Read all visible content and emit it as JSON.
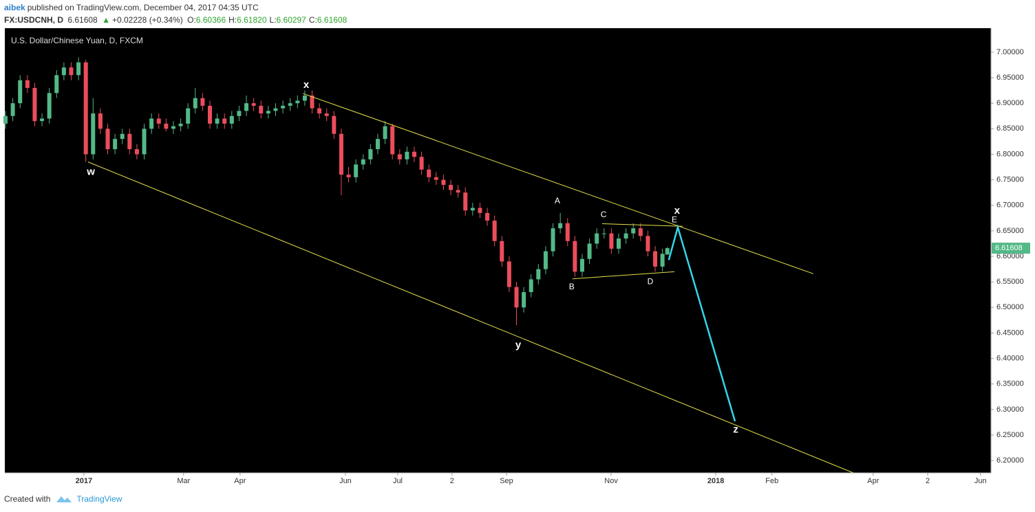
{
  "header": {
    "author": "aibek",
    "published": "published on TradingView.com, December 04, 2017 04:35 UTC",
    "symbol": "FX:USDCNH, D",
    "last": "6.61608",
    "arrow": "▲",
    "change": "+0.02228 (+0.34%)",
    "ohlc": [
      {
        "label": "O:",
        "value": "6.60366"
      },
      {
        "label": "H:",
        "value": "6.61820"
      },
      {
        "label": "L:",
        "value": "6.60297"
      },
      {
        "label": "C:",
        "value": "6.61608"
      }
    ]
  },
  "chart_data": {
    "type": "candlestick",
    "title": "U.S. Dollar/Chinese Yuan, D, FXCM",
    "up_color": "#53b987",
    "down_color": "#eb4d5c",
    "background": "#000000",
    "xlim": [
      0,
      405
    ],
    "ylim": [
      6.176,
      7.047
    ],
    "xticks": [
      {
        "value": 32.2,
        "label": "2017"
      },
      {
        "value": 73.2,
        "label": "Mar"
      },
      {
        "value": 96.4,
        "label": "Apr"
      },
      {
        "value": 139.7,
        "label": "Jun"
      },
      {
        "value": 161.2,
        "label": "Jul"
      },
      {
        "value": 183.5,
        "label": "2"
      },
      {
        "value": 205.9,
        "label": "Sep"
      },
      {
        "value": 248.9,
        "label": "Nov"
      },
      {
        "value": 291.9,
        "label": "2018"
      },
      {
        "value": 315.0,
        "label": "Feb"
      },
      {
        "value": 356.6,
        "label": "Apr"
      },
      {
        "value": 379.0,
        "label": "2"
      },
      {
        "value": 400.7,
        "label": "Jun"
      }
    ],
    "yticks": [
      {
        "value": 6.2,
        "label": "6.20000"
      },
      {
        "value": 6.25,
        "label": "6.25000"
      },
      {
        "value": 6.3,
        "label": "6.30000"
      },
      {
        "value": 6.35,
        "label": "6.35000"
      },
      {
        "value": 6.4,
        "label": "6.40000"
      },
      {
        "value": 6.45,
        "label": "6.45000"
      },
      {
        "value": 6.5,
        "label": "6.50000"
      },
      {
        "value": 6.55,
        "label": "6.55000"
      },
      {
        "value": 6.6,
        "label": "6.60000"
      },
      {
        "value": 6.65,
        "label": "6.65000"
      },
      {
        "value": 6.7,
        "label": "6.70000"
      },
      {
        "value": 6.75,
        "label": "6.75000"
      },
      {
        "value": 6.8,
        "label": "6.80000"
      },
      {
        "value": 6.85,
        "label": "6.85000"
      },
      {
        "value": 6.9,
        "label": "6.90000"
      },
      {
        "value": 6.95,
        "label": "6.95000"
      },
      {
        "value": 7.0,
        "label": "7.00000"
      }
    ],
    "last_price": 6.61608,
    "last_color": "#53b987",
    "x": [
      0,
      3,
      6,
      9,
      12,
      15,
      18,
      21,
      24,
      27,
      30,
      33,
      36,
      39,
      42,
      45,
      48,
      51,
      54,
      57,
      60,
      63,
      66,
      69,
      72,
      75,
      78,
      81,
      84,
      87,
      90,
      93,
      96,
      99,
      102,
      105,
      108,
      111,
      114,
      117,
      120,
      123,
      126,
      129,
      132,
      135,
      138,
      141,
      144,
      147,
      150,
      153,
      156,
      159,
      162,
      165,
      168,
      171,
      174,
      177,
      180,
      183,
      186,
      189,
      192,
      195,
      198,
      201,
      204,
      207,
      210,
      213,
      216,
      219,
      222,
      225,
      228,
      231,
      234,
      237,
      240,
      243,
      246,
      249,
      252,
      255,
      258,
      261,
      264,
      267,
      270,
      272
    ],
    "open": [
      6.86,
      6.875,
      6.9,
      6.945,
      6.93,
      6.865,
      6.87,
      6.92,
      6.955,
      6.97,
      6.955,
      6.98,
      6.8,
      6.88,
      6.85,
      6.81,
      6.83,
      6.84,
      6.81,
      6.8,
      6.85,
      6.87,
      6.86,
      6.85,
      6.855,
      6.86,
      6.89,
      6.91,
      6.895,
      6.86,
      6.87,
      6.86,
      6.875,
      6.885,
      6.9,
      6.895,
      6.88,
      6.885,
      6.89,
      6.895,
      6.9,
      6.905,
      6.915,
      6.89,
      6.88,
      6.875,
      6.84,
      6.76,
      6.755,
      6.78,
      6.79,
      6.81,
      6.83,
      6.855,
      6.8,
      6.79,
      6.805,
      6.795,
      6.77,
      6.755,
      6.75,
      6.74,
      6.73,
      6.725,
      6.69,
      6.695,
      6.685,
      6.67,
      6.63,
      6.59,
      6.54,
      6.5,
      6.53,
      6.555,
      6.575,
      6.61,
      6.655,
      6.665,
      6.63,
      6.57,
      6.595,
      6.625,
      6.645,
      6.645,
      6.615,
      6.635,
      6.645,
      6.655,
      6.64,
      6.61,
      6.58,
      6.60366
    ],
    "high": [
      6.885,
      6.91,
      6.955,
      6.955,
      6.94,
      6.88,
      6.93,
      6.965,
      6.98,
      6.98,
      6.99,
      6.985,
      6.91,
      6.89,
      6.86,
      6.84,
      6.85,
      6.85,
      6.82,
      6.86,
      6.88,
      6.88,
      6.87,
      6.865,
      6.87,
      6.9,
      6.93,
      6.92,
      6.905,
      6.88,
      6.88,
      6.885,
      6.895,
      6.915,
      6.91,
      6.905,
      6.895,
      6.9,
      6.905,
      6.91,
      6.915,
      6.925,
      6.925,
      6.9,
      6.89,
      6.885,
      6.85,
      6.775,
      6.79,
      6.8,
      6.82,
      6.84,
      6.865,
      6.86,
      6.81,
      6.815,
      6.815,
      6.805,
      6.78,
      6.765,
      6.76,
      6.75,
      6.74,
      6.735,
      6.705,
      6.705,
      6.695,
      6.68,
      6.64,
      6.6,
      6.55,
      6.54,
      6.565,
      6.585,
      6.62,
      6.665,
      6.685,
      6.675,
      6.64,
      6.605,
      6.635,
      6.655,
      6.655,
      6.655,
      6.645,
      6.655,
      6.665,
      6.665,
      6.65,
      6.62,
      6.615,
      6.6182
    ],
    "low": [
      6.85,
      6.865,
      6.89,
      6.92,
      6.855,
      6.855,
      6.86,
      6.91,
      6.945,
      6.945,
      6.945,
      6.785,
      6.79,
      6.84,
      6.8,
      6.8,
      6.82,
      6.8,
      6.79,
      6.79,
      6.84,
      6.85,
      6.845,
      6.84,
      6.845,
      6.85,
      6.88,
      6.885,
      6.85,
      6.85,
      6.85,
      6.85,
      6.865,
      6.875,
      6.885,
      6.87,
      6.87,
      6.875,
      6.88,
      6.885,
      6.89,
      6.895,
      6.88,
      6.87,
      6.865,
      6.83,
      6.72,
      6.745,
      6.745,
      6.77,
      6.78,
      6.8,
      6.82,
      6.79,
      6.78,
      6.78,
      6.785,
      6.76,
      6.745,
      6.74,
      6.73,
      6.72,
      6.715,
      6.68,
      6.68,
      6.675,
      6.66,
      6.62,
      6.58,
      6.53,
      6.465,
      6.49,
      6.52,
      6.545,
      6.565,
      6.6,
      6.645,
      6.62,
      6.56,
      6.56,
      6.585,
      6.615,
      6.635,
      6.605,
      6.605,
      6.625,
      6.635,
      6.63,
      6.6,
      6.57,
      6.57,
      6.60297
    ],
    "close": [
      6.875,
      6.9,
      6.945,
      6.93,
      6.865,
      6.87,
      6.92,
      6.955,
      6.97,
      6.955,
      6.98,
      6.8,
      6.88,
      6.85,
      6.81,
      6.83,
      6.84,
      6.81,
      6.8,
      6.85,
      6.87,
      6.86,
      6.85,
      6.855,
      6.86,
      6.89,
      6.91,
      6.895,
      6.86,
      6.87,
      6.86,
      6.875,
      6.885,
      6.9,
      6.895,
      6.88,
      6.885,
      6.89,
      6.895,
      6.9,
      6.905,
      6.915,
      6.89,
      6.88,
      6.875,
      6.84,
      6.76,
      6.755,
      6.78,
      6.79,
      6.81,
      6.83,
      6.855,
      6.8,
      6.79,
      6.805,
      6.795,
      6.77,
      6.755,
      6.75,
      6.74,
      6.73,
      6.725,
      6.69,
      6.695,
      6.685,
      6.67,
      6.63,
      6.59,
      6.54,
      6.5,
      6.53,
      6.555,
      6.575,
      6.61,
      6.655,
      6.665,
      6.63,
      6.57,
      6.595,
      6.625,
      6.645,
      6.645,
      6.615,
      6.635,
      6.645,
      6.655,
      6.64,
      6.61,
      6.58,
      6.605,
      6.61608
    ],
    "lines": [
      {
        "color": "#e6e24a",
        "x": [
          33.9,
          348.4
        ],
        "y": [
          6.785,
          6.176
        ]
      },
      {
        "color": "#e6e24a",
        "x": [
          122.2,
          332.0
        ],
        "y": [
          6.919,
          6.566
        ]
      },
      {
        "color": "#e6e24a",
        "x": [
          245.2,
          278.3
        ],
        "y": [
          6.664,
          6.659
        ]
      },
      {
        "color": "#e6e24a",
        "x": [
          233.0,
          274.9
        ],
        "y": [
          6.556,
          6.57
        ]
      },
      {
        "color": "#33d6e8",
        "x": [
          272.6,
          276.3,
          299.8
        ],
        "y": [
          6.593,
          6.657,
          6.277
        ]
      }
    ],
    "annotations": [
      {
        "text": "w",
        "x": 35.1,
        "y": 6.765
      },
      {
        "text": "x",
        "x": 123.6,
        "y": 6.935
      },
      {
        "text": "y",
        "x": 210.7,
        "y": 6.426
      },
      {
        "text": "z",
        "x": 300.1,
        "y": 6.26
      },
      {
        "text": "x",
        "x": 276.0,
        "y": 6.689
      },
      {
        "text": "A",
        "x": 226.8,
        "y": 6.708
      },
      {
        "text": "B",
        "x": 232.7,
        "y": 6.54
      },
      {
        "text": "C",
        "x": 245.8,
        "y": 6.681
      },
      {
        "text": "D",
        "x": 265.0,
        "y": 6.55
      },
      {
        "text": "E",
        "x": 274.9,
        "y": 6.671
      }
    ]
  },
  "footer": {
    "created": "Created with",
    "brand": "TradingView"
  }
}
